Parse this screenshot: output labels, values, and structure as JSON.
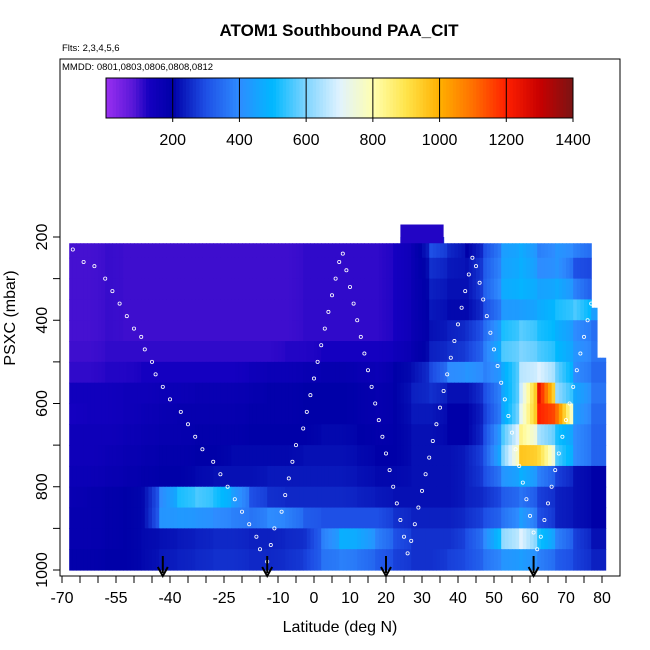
{
  "chart_data": {
    "type": "heatmap",
    "title": "ATOM1 Southbound PAA_CIT",
    "flights_note": "Flts: 2,3,4,5,6",
    "dates_note": "MMDD: 0801,0803,0806,0808,0812",
    "xlabel": "Latitude (deg N)",
    "ylabel": "PSXC (mbar)",
    "xlim": [
      -70,
      80
    ],
    "ylim": [
      1000,
      200
    ],
    "x_ticks": [
      -70,
      -55,
      -40,
      -25,
      -10,
      0,
      10,
      20,
      30,
      40,
      50,
      60,
      70,
      80
    ],
    "y_ticks": [
      200,
      400,
      600,
      800,
      1000
    ],
    "colorbar": {
      "range": [
        0,
        1400
      ],
      "ticks": [
        200,
        400,
        600,
        800,
        1000,
        1200,
        1400
      ],
      "colors": [
        "#8b1ae6",
        "#0000b4",
        "#3a8cff",
        "#00b4ff",
        "#cfe8ff",
        "#ffffd0",
        "#ffe000",
        "#ff9000",
        "#ff3000",
        "#c80000",
        "#7a1010"
      ]
    },
    "color_scale_stops": [
      {
        "value": 0,
        "color": "#9a2ff0"
      },
      {
        "value": 80,
        "color": "#5a18d8"
      },
      {
        "value": 130,
        "color": "#1400c0"
      },
      {
        "value": 200,
        "color": "#0000a8"
      },
      {
        "value": 300,
        "color": "#1e50e6"
      },
      {
        "value": 400,
        "color": "#2e8cff"
      },
      {
        "value": 500,
        "color": "#00b8ff"
      },
      {
        "value": 600,
        "color": "#7fd4ff"
      },
      {
        "value": 700,
        "color": "#e0f2ff"
      },
      {
        "value": 800,
        "color": "#ffffb0"
      },
      {
        "value": 900,
        "color": "#ffe44a"
      },
      {
        "value": 1000,
        "color": "#ffb000"
      },
      {
        "value": 1100,
        "color": "#ff7000"
      },
      {
        "value": 1200,
        "color": "#ff2000"
      },
      {
        "value": 1300,
        "color": "#c80000"
      },
      {
        "value": 1400,
        "color": "#7a1414"
      }
    ],
    "lat_grid_step": 5,
    "pressure_levels": [
      225,
      275,
      325,
      375,
      425,
      475,
      525,
      575,
      625,
      675,
      725,
      775,
      825,
      875,
      925,
      975
    ],
    "coverage_top_mbar": [
      {
        "lat_from": -68,
        "lat_to": 24,
        "top": 215
      },
      {
        "lat_from": 24,
        "lat_to": 36,
        "top": 170
      },
      {
        "lat_from": 36,
        "lat_to": 77,
        "top": 215
      },
      {
        "lat_from": 77,
        "lat_to": 79,
        "top": 370
      },
      {
        "lat_from": 79,
        "lat_to": 81,
        "top": 490
      }
    ],
    "grid_values": {
      "225": [
        95,
        95,
        105,
        100,
        100,
        100,
        100,
        100,
        100,
        100,
        100,
        100,
        100,
        110,
        110,
        110,
        110,
        110,
        130,
        170,
        300,
        250,
        200,
        300,
        440,
        470,
        380,
        420,
        380,
        320
      ],
      "275": [
        95,
        95,
        105,
        100,
        100,
        100,
        100,
        100,
        100,
        100,
        100,
        100,
        100,
        110,
        110,
        110,
        110,
        110,
        130,
        170,
        260,
        230,
        220,
        320,
        450,
        480,
        400,
        420,
        300,
        280
      ],
      "325": [
        95,
        95,
        105,
        100,
        100,
        100,
        100,
        100,
        100,
        100,
        100,
        100,
        100,
        110,
        110,
        110,
        110,
        110,
        130,
        170,
        240,
        220,
        220,
        330,
        470,
        490,
        450,
        470,
        380,
        280
      ],
      "375": [
        95,
        95,
        105,
        100,
        100,
        100,
        100,
        100,
        100,
        100,
        100,
        100,
        100,
        110,
        110,
        110,
        110,
        110,
        130,
        170,
        230,
        210,
        210,
        300,
        430,
        440,
        470,
        520,
        560,
        440
      ],
      "425": [
        95,
        95,
        105,
        100,
        100,
        100,
        100,
        100,
        100,
        100,
        100,
        100,
        100,
        110,
        110,
        110,
        110,
        110,
        130,
        170,
        220,
        240,
        260,
        350,
        520,
        570,
        520,
        480,
        400,
        350
      ],
      "475": [
        100,
        100,
        110,
        110,
        110,
        110,
        110,
        110,
        110,
        110,
        110,
        110,
        120,
        120,
        130,
        130,
        130,
        130,
        150,
        180,
        240,
        260,
        280,
        380,
        560,
        600,
        560,
        500,
        420,
        360
      ],
      "525": [
        110,
        110,
        120,
        120,
        130,
        130,
        130,
        130,
        130,
        130,
        150,
        160,
        160,
        170,
        180,
        180,
        170,
        160,
        200,
        220,
        290,
        400,
        420,
        380,
        470,
        660,
        700,
        580,
        400,
        340
      ],
      "575": [
        140,
        140,
        140,
        150,
        150,
        160,
        160,
        170,
        170,
        170,
        180,
        190,
        190,
        200,
        200,
        200,
        190,
        180,
        200,
        240,
        260,
        220,
        220,
        300,
        460,
        680,
        1240,
        620,
        460,
        360
      ],
      "625": [
        130,
        140,
        140,
        150,
        160,
        170,
        180,
        180,
        180,
        180,
        190,
        190,
        190,
        200,
        200,
        200,
        190,
        180,
        200,
        230,
        230,
        200,
        200,
        280,
        460,
        720,
        1200,
        1100,
        440,
        340
      ],
      "675": [
        150,
        150,
        150,
        160,
        170,
        180,
        180,
        190,
        190,
        190,
        200,
        200,
        200,
        200,
        210,
        210,
        200,
        190,
        200,
        220,
        220,
        200,
        200,
        300,
        560,
        840,
        640,
        520,
        400,
        330
      ],
      "725": [
        150,
        150,
        160,
        170,
        180,
        190,
        190,
        200,
        200,
        210,
        210,
        210,
        210,
        220,
        220,
        220,
        210,
        200,
        200,
        220,
        220,
        220,
        240,
        320,
        600,
        960,
        920,
        560,
        400,
        330
      ],
      "775": [
        160,
        160,
        170,
        180,
        190,
        200,
        200,
        210,
        220,
        220,
        220,
        230,
        230,
        230,
        230,
        230,
        220,
        210,
        210,
        220,
        220,
        220,
        240,
        300,
        420,
        480,
        380,
        280,
        220,
        200
      ],
      "825": [
        170,
        180,
        190,
        200,
        210,
        400,
        520,
        560,
        520,
        440,
        300,
        260,
        250,
        250,
        250,
        250,
        240,
        230,
        220,
        220,
        220,
        220,
        240,
        260,
        320,
        360,
        280,
        240,
        220,
        200
      ],
      "875": [
        180,
        180,
        190,
        200,
        210,
        420,
        430,
        420,
        400,
        380,
        360,
        400,
        380,
        320,
        300,
        300,
        300,
        300,
        260,
        240,
        240,
        240,
        260,
        300,
        360,
        440,
        300,
        240,
        220,
        200
      ],
      "925": [
        180,
        180,
        190,
        200,
        210,
        220,
        230,
        240,
        250,
        250,
        240,
        240,
        250,
        260,
        380,
        480,
        460,
        380,
        300,
        260,
        260,
        260,
        300,
        400,
        620,
        700,
        520,
        380,
        280,
        220
      ],
      "975": [
        190,
        190,
        200,
        200,
        210,
        230,
        240,
        250,
        260,
        260,
        250,
        250,
        260,
        280,
        360,
        380,
        360,
        320,
        280,
        260,
        260,
        280,
        300,
        360,
        420,
        440,
        380,
        320,
        280,
        240
      ]
    },
    "sample_points": {
      "lat": [
        -67,
        -64,
        -61,
        -58,
        -56,
        -54,
        -52,
        -50,
        -48,
        -47,
        -45,
        -44,
        -42,
        -40,
        -37,
        -35,
        -33,
        -31,
        -28,
        -26,
        -24,
        -22,
        -20,
        -18,
        -16,
        -15,
        -13,
        -12,
        -11,
        -9,
        -8,
        -7,
        -6,
        -5,
        -3,
        -2,
        -1,
        0,
        1,
        2,
        3,
        4,
        5,
        6,
        7,
        8,
        9,
        10,
        11,
        12,
        13,
        14,
        15,
        16,
        17,
        18,
        19,
        20,
        21,
        22,
        23,
        24,
        25,
        26,
        27,
        28,
        29,
        30,
        31,
        32,
        33,
        34,
        35,
        36,
        37,
        38,
        39,
        40,
        41,
        42,
        43,
        44,
        45,
        46,
        47,
        48,
        49,
        50,
        51,
        52,
        53,
        54,
        55,
        56,
        57,
        58,
        59,
        60,
        61,
        62,
        63,
        64,
        65,
        66,
        67,
        68,
        69,
        70,
        71,
        72,
        73,
        74,
        75,
        76,
        77,
        78,
        79
      ],
      "p": [
        230,
        260,
        270,
        300,
        330,
        360,
        390,
        420,
        440,
        470,
        500,
        530,
        560,
        590,
        620,
        650,
        680,
        710,
        740,
        770,
        800,
        830,
        860,
        890,
        920,
        950,
        980,
        940,
        900,
        860,
        820,
        780,
        740,
        700,
        660,
        620,
        580,
        540,
        500,
        460,
        420,
        380,
        340,
        300,
        260,
        240,
        280,
        320,
        360,
        400,
        440,
        480,
        520,
        560,
        600,
        640,
        680,
        720,
        760,
        800,
        840,
        880,
        920,
        960,
        930,
        890,
        850,
        810,
        770,
        730,
        690,
        650,
        610,
        570,
        530,
        490,
        450,
        410,
        370,
        330,
        290,
        250,
        270,
        310,
        350,
        390,
        430,
        470,
        510,
        550,
        590,
        630,
        670,
        710,
        750,
        790,
        830,
        870,
        910,
        950,
        920,
        880,
        840,
        800,
        760,
        720,
        680,
        640,
        600,
        560,
        520,
        480,
        440,
        400,
        360,
        320,
        280
      ]
    },
    "arrows_lat": [
      -42,
      -13,
      20,
      61
    ]
  }
}
